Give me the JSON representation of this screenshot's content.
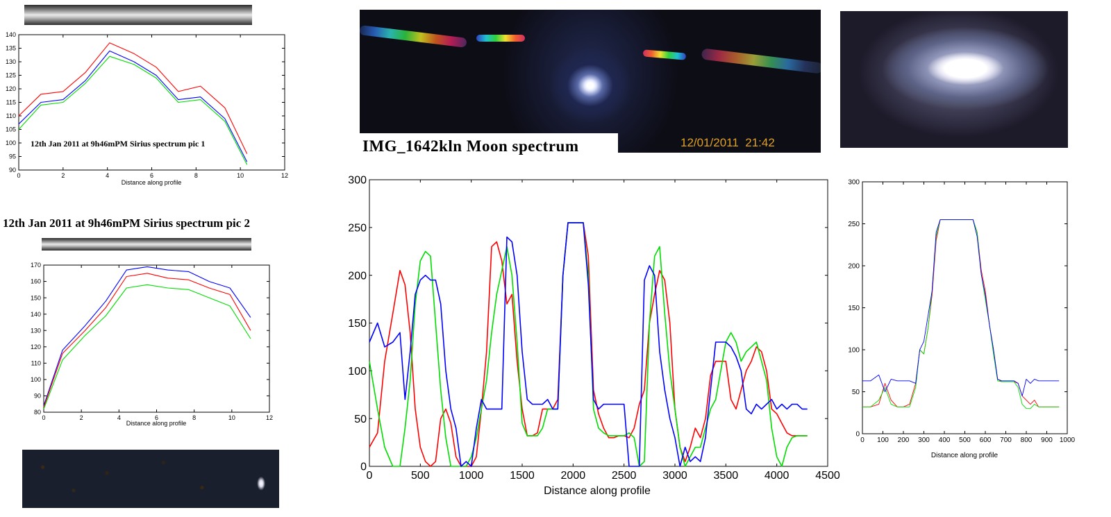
{
  "captions": {
    "pic1": "12th Jan 2011 at 9h46mPM Sirius spectrum pic 1",
    "pic2": "12th Jan 2011 at 9h46mPM Sirius spectrum pic 2",
    "moon": "IMG_1642kln Moon spectrum",
    "timestamp": "12/01/2011  21:42"
  },
  "colors": {
    "red": "#ff0000",
    "green": "#00dd00",
    "blue": "#0000ff",
    "timestamp": "#e0a020"
  },
  "chart_data": [
    {
      "id": "sirius1",
      "type": "line",
      "xlabel": "Distance along profile",
      "xlim": [
        0,
        12
      ],
      "ylim": [
        90,
        140
      ],
      "xticks": [
        "0",
        "2",
        "4",
        "6",
        "8",
        "10",
        "12"
      ],
      "yticks": [
        "90",
        "95",
        "100",
        "105",
        "110",
        "115",
        "120",
        "125",
        "130",
        "135",
        "140"
      ],
      "x": [
        0,
        1,
        2,
        3,
        4.1,
        5.2,
        6.2,
        7.2,
        8.2,
        9.3,
        10.3
      ],
      "series": [
        {
          "color": "red",
          "values": [
            110,
            118,
            119,
            126,
            137,
            133,
            128,
            119,
            121,
            113,
            96
          ]
        },
        {
          "color": "blue",
          "values": [
            107,
            115,
            116,
            123,
            134,
            130,
            125,
            116,
            117,
            109,
            93
          ]
        },
        {
          "color": "green",
          "values": [
            105,
            114,
            115,
            122,
            132,
            129,
            124,
            115,
            116,
            108,
            92
          ]
        }
      ]
    },
    {
      "id": "sirius2",
      "type": "line",
      "xlabel": "Distance along profile",
      "xlim": [
        0,
        12
      ],
      "ylim": [
        80,
        170
      ],
      "xticks": [
        "0",
        "2",
        "4",
        "6",
        "8",
        "10",
        "12"
      ],
      "yticks": [
        "80",
        "90",
        "100",
        "110",
        "120",
        "130",
        "140",
        "150",
        "160",
        "170"
      ],
      "x": [
        0,
        1,
        2.2,
        3.3,
        4.4,
        5.5,
        6.6,
        7.7,
        8.8,
        9.9,
        11
      ],
      "series": [
        {
          "color": "blue",
          "values": [
            84,
            118,
            133,
            148,
            167,
            169,
            167,
            166,
            160,
            156,
            138
          ]
        },
        {
          "color": "red",
          "values": [
            83,
            116,
            130,
            144,
            163,
            165,
            162,
            161,
            156,
            152,
            130
          ]
        },
        {
          "color": "green",
          "values": [
            82,
            112,
            127,
            139,
            156,
            158,
            156,
            155,
            150,
            145,
            125
          ]
        }
      ]
    },
    {
      "id": "moon",
      "type": "line",
      "xlabel": "Distance along profile",
      "xlim": [
        0,
        4500
      ],
      "ylim": [
        0,
        300
      ],
      "xticks": [
        "0",
        "500",
        "1000",
        "1500",
        "2000",
        "2500",
        "3000",
        "3500",
        "4000",
        "4500"
      ],
      "yticks": [
        "0",
        "50",
        "100",
        "150",
        "200",
        "250",
        "300"
      ],
      "x": [
        0,
        80,
        150,
        230,
        300,
        350,
        400,
        450,
        500,
        550,
        600,
        650,
        700,
        750,
        800,
        850,
        900,
        950,
        1000,
        1050,
        1100,
        1150,
        1200,
        1250,
        1300,
        1350,
        1400,
        1450,
        1500,
        1550,
        1600,
        1650,
        1700,
        1750,
        1800,
        1850,
        1900,
        1950,
        2000,
        2050,
        2100,
        2150,
        2200,
        2250,
        2300,
        2350,
        2400,
        2450,
        2500,
        2550,
        2600,
        2650,
        2700,
        2750,
        2800,
        2850,
        2900,
        2950,
        3000,
        3050,
        3100,
        3150,
        3200,
        3250,
        3300,
        3350,
        3400,
        3450,
        3500,
        3550,
        3600,
        3650,
        3700,
        3750,
        3800,
        3850,
        3900,
        3950,
        4000,
        4050,
        4100,
        4150,
        4200,
        4250,
        4300
      ],
      "series": [
        {
          "color": "red",
          "values": [
            20,
            35,
            110,
            160,
            205,
            190,
            140,
            60,
            20,
            5,
            0,
            5,
            50,
            60,
            45,
            10,
            0,
            0,
            0,
            10,
            60,
            120,
            230,
            235,
            215,
            170,
            180,
            110,
            60,
            32,
            32,
            35,
            60,
            60,
            60,
            70,
            200,
            255,
            255,
            255,
            255,
            220,
            80,
            55,
            40,
            30,
            30,
            32,
            32,
            30,
            40,
            65,
            80,
            150,
            180,
            205,
            195,
            150,
            60,
            20,
            5,
            20,
            40,
            30,
            50,
            95,
            110,
            110,
            110,
            70,
            60,
            80,
            100,
            110,
            125,
            120,
            100,
            60,
            55,
            45,
            35,
            32,
            32,
            32,
            32
          ]
        },
        {
          "color": "green",
          "values": [
            110,
            60,
            20,
            0,
            0,
            40,
            90,
            170,
            215,
            225,
            220,
            150,
            80,
            30,
            0,
            0,
            0,
            0,
            10,
            30,
            60,
            90,
            140,
            180,
            205,
            230,
            200,
            130,
            45,
            32,
            32,
            32,
            40,
            60,
            60,
            60,
            200,
            255,
            255,
            255,
            255,
            200,
            60,
            40,
            35,
            32,
            32,
            32,
            32,
            35,
            30,
            0,
            5,
            150,
            220,
            230,
            160,
            100,
            60,
            20,
            0,
            10,
            20,
            20,
            40,
            60,
            70,
            100,
            130,
            140,
            130,
            110,
            120,
            125,
            130,
            110,
            90,
            40,
            10,
            0,
            20,
            30,
            32,
            32,
            32
          ]
        },
        {
          "color": "blue",
          "values": [
            130,
            150,
            125,
            130,
            140,
            70,
            120,
            180,
            195,
            200,
            195,
            195,
            170,
            100,
            60,
            40,
            0,
            5,
            0,
            40,
            70,
            60,
            60,
            60,
            60,
            240,
            235,
            200,
            120,
            70,
            65,
            65,
            65,
            70,
            60,
            60,
            200,
            255,
            255,
            255,
            255,
            190,
            70,
            60,
            65,
            65,
            65,
            65,
            65,
            0,
            0,
            0,
            195,
            210,
            200,
            120,
            80,
            50,
            30,
            0,
            20,
            5,
            10,
            5,
            30,
            80,
            130,
            130,
            130,
            125,
            115,
            100,
            60,
            55,
            65,
            60,
            65,
            70,
            60,
            65,
            60,
            65,
            65,
            60,
            60
          ]
        }
      ]
    },
    {
      "id": "moonzoom",
      "type": "line",
      "xlabel": "Distance along profile",
      "xlim": [
        0,
        1000
      ],
      "ylim": [
        0,
        300
      ],
      "xticks": [
        "0",
        "100",
        "200",
        "300",
        "400",
        "500",
        "600",
        "700",
        "800",
        "900",
        "1000"
      ],
      "yticks": [
        "0",
        "50",
        "100",
        "150",
        "200",
        "250",
        "300"
      ],
      "x": [
        0,
        40,
        80,
        110,
        140,
        170,
        200,
        230,
        260,
        280,
        300,
        320,
        340,
        360,
        380,
        400,
        450,
        500,
        540,
        560,
        580,
        600,
        620,
        640,
        660,
        680,
        700,
        740,
        760,
        780,
        800,
        820,
        840,
        860,
        880,
        920,
        960
      ],
      "series": [
        {
          "color": "red",
          "values": [
            32,
            32,
            35,
            60,
            40,
            32,
            32,
            35,
            60,
            100,
            95,
            125,
            165,
            230,
            255,
            255,
            255,
            255,
            255,
            240,
            195,
            170,
            130,
            100,
            65,
            62,
            62,
            62,
            60,
            45,
            40,
            35,
            40,
            32,
            32,
            32,
            32
          ]
        },
        {
          "color": "green",
          "values": [
            32,
            32,
            40,
            55,
            35,
            32,
            32,
            32,
            55,
            100,
            95,
            125,
            170,
            235,
            255,
            255,
            255,
            255,
            255,
            240,
            190,
            160,
            130,
            95,
            63,
            62,
            62,
            62,
            55,
            35,
            30,
            30,
            35,
            32,
            32,
            32,
            32
          ]
        },
        {
          "color": "blue",
          "values": [
            63,
            63,
            70,
            50,
            65,
            63,
            63,
            63,
            60,
            100,
            110,
            140,
            170,
            240,
            255,
            255,
            255,
            255,
            255,
            235,
            190,
            165,
            130,
            100,
            65,
            63,
            63,
            63,
            60,
            45,
            65,
            60,
            65,
            63,
            63,
            63,
            63
          ]
        }
      ]
    }
  ]
}
